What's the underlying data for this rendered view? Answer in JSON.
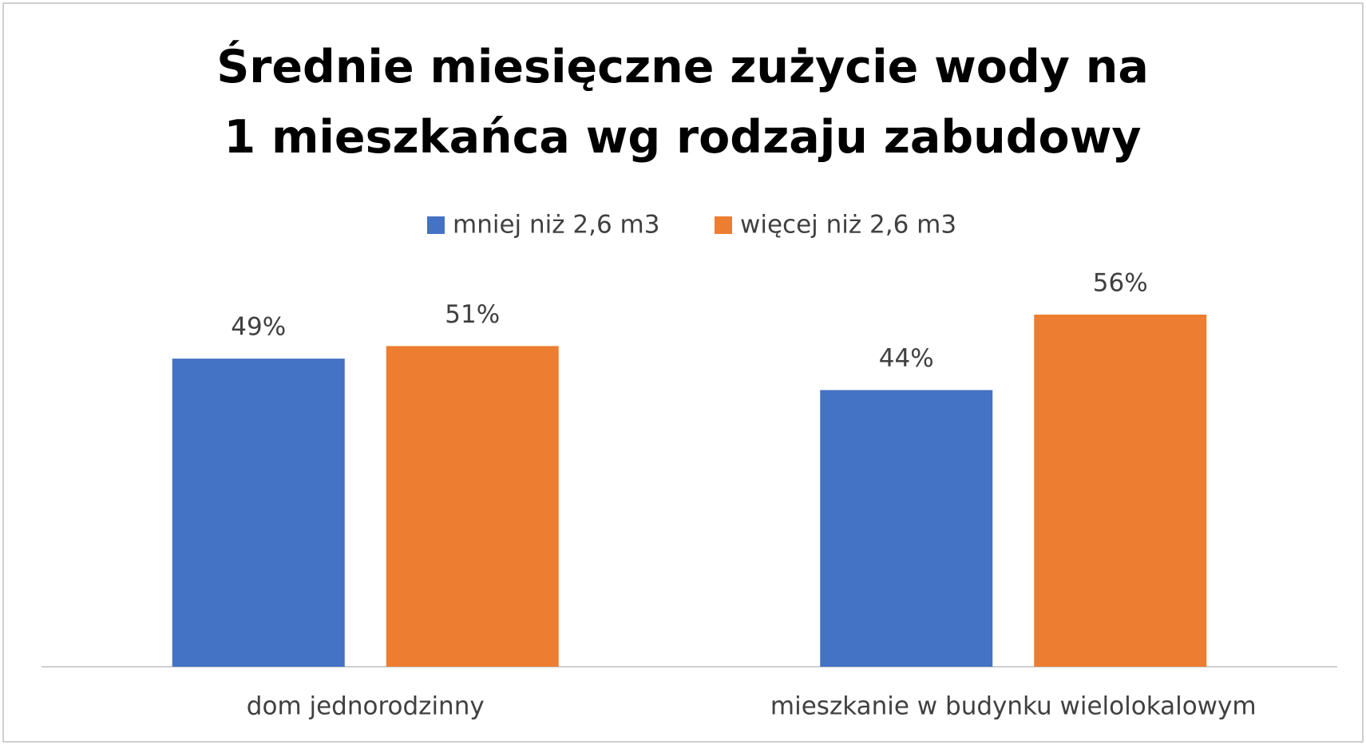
{
  "chart_data": {
    "type": "bar",
    "title": "Średnie miesięczne zużycie wody na 1 mieszkańca wg rodzaju zabudowy",
    "categories": [
      "dom jednorodzinny",
      "mieszkanie w budynku wielolokalowym"
    ],
    "series": [
      {
        "name": "mniej niż 2,6 m3",
        "color": "#4472c4",
        "values": [
          49,
          44
        ],
        "value_labels": [
          "49%",
          "44%"
        ]
      },
      {
        "name": "więcej niż 2,6 m3",
        "color": "#ed7d31",
        "values": [
          51,
          56
        ],
        "value_labels": [
          "51%",
          "56%"
        ]
      }
    ],
    "legend": "top"
  }
}
